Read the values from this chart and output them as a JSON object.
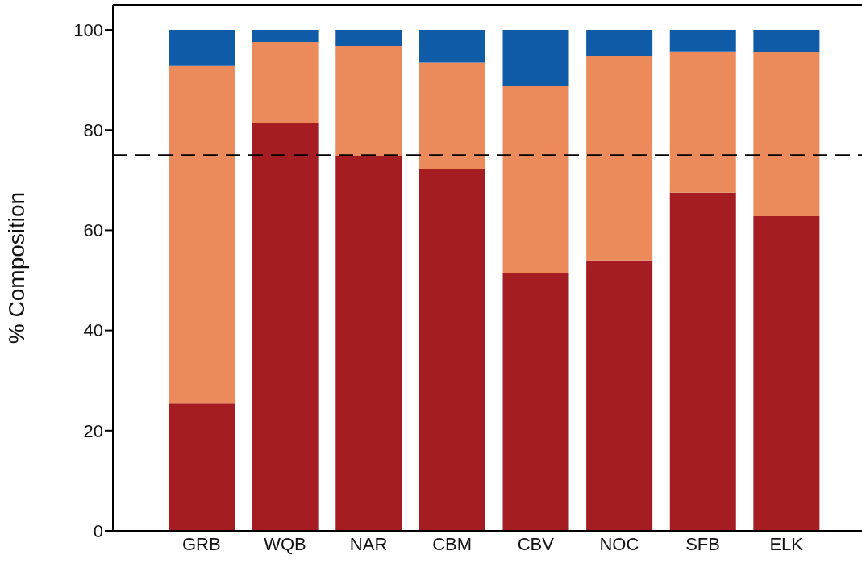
{
  "chart_data": {
    "type": "bar",
    "stacked": true,
    "ylabel": "% Composition",
    "categories": [
      "GRB",
      "WQB",
      "NAR",
      "CBM",
      "CBV",
      "NOC",
      "SFB",
      "ELK"
    ],
    "series": [
      {
        "color": "#a51c22",
        "values": [
          25.4,
          81.4,
          74.8,
          72.3,
          51.4,
          54.0,
          67.5,
          62.8
        ]
      },
      {
        "color": "#eb8a5b",
        "values": [
          67.4,
          16.2,
          22.0,
          21.2,
          37.4,
          40.7,
          28.2,
          32.7
        ]
      },
      {
        "color": "#0f5ba8",
        "values": [
          7.2,
          2.4,
          3.2,
          6.5,
          11.2,
          5.3,
          4.3,
          4.5
        ]
      }
    ],
    "ylim": [
      0,
      105
    ],
    "yticks": [
      0,
      20,
      40,
      60,
      80,
      100
    ],
    "ref_lines": [
      {
        "axis": "y",
        "value": 75,
        "line_style": "dashed",
        "color": "#000000"
      }
    ]
  }
}
